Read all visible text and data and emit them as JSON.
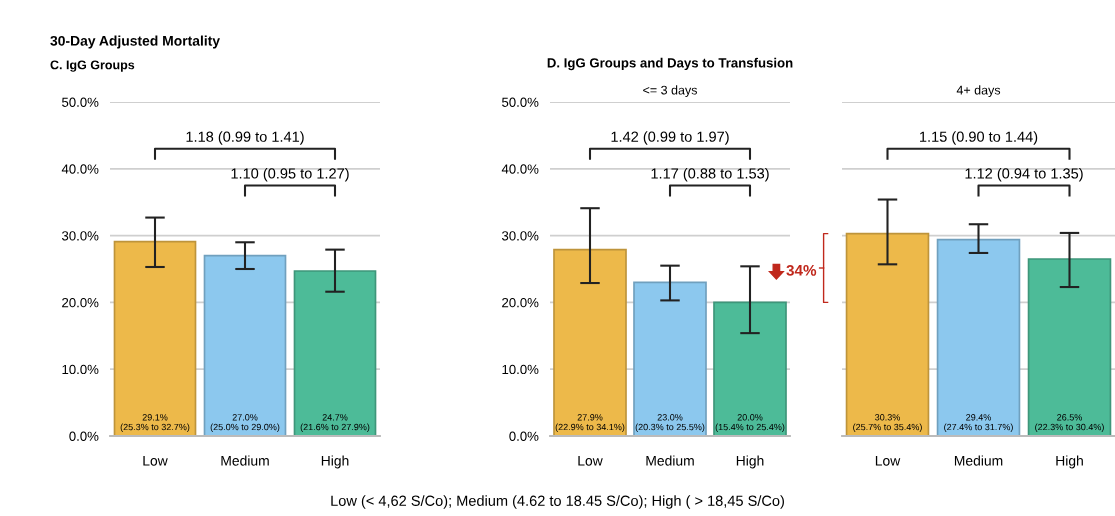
{
  "chart_data": [
    {
      "type": "bar",
      "title": "30-Day Adjusted Mortality",
      "subtitle": "C. IgG Groups",
      "categories": [
        "Low",
        "Medium",
        "High"
      ],
      "values": [
        29.1,
        27.0,
        24.7
      ],
      "colors": [
        "#edb94a",
        "#8cc8ee",
        "#4dbb98"
      ],
      "errors": [
        [
          25.3,
          32.7
        ],
        [
          25.0,
          29.0
        ],
        [
          21.6,
          27.9
        ]
      ],
      "value_labels": [
        "29.1%\n(25.3% to 32.7%)",
        "27.0%\n(25.0% to 29.0%)",
        "24.7%\n(21.6% to 27.9%)"
      ],
      "ylim": [
        0,
        50
      ],
      "yticks": [
        {
          "value": 0,
          "label": "0.0%"
        },
        {
          "value": 10,
          "label": "10.0%"
        },
        {
          "value": 20,
          "label": "20.0%"
        },
        {
          "value": 30,
          "label": "30.0%"
        },
        {
          "value": 40,
          "label": "40.0%"
        },
        {
          "value": 50,
          "label": "50.0%"
        }
      ],
      "grid": "y",
      "annotations": [
        "1.18 (0.99 to 1.41)",
        "1.10 (0.95 to 1.27)",
        "Low (< 4,62 S/Co); Medium (4.62 to 18.45 S/Co); High ( > 18,45 S/Co)"
      ]
    },
    {
      "type": "bar",
      "title": "D. IgG Groups and Days to Transfusion",
      "subtitle": "<= 3 days",
      "categories": [
        "Low",
        "Medium",
        "High"
      ],
      "values": [
        27.9,
        23.0,
        20.0
      ],
      "colors": [
        "#edb94a",
        "#8cc8ee",
        "#4dbb98"
      ],
      "errors": [
        [
          22.9,
          34.1
        ],
        [
          20.3,
          25.5
        ],
        [
          15.4,
          25.4
        ]
      ],
      "value_labels": [
        "27.9%\n(22.9% to 34.1%)",
        "23.0%\n(20.3% to 25.5%)",
        "20.0%\n(15.4% to 25.4%)"
      ],
      "ylim": [
        0,
        50
      ],
      "yticks": [
        {
          "value": 0,
          "label": "0.0%"
        },
        {
          "value": 10,
          "label": "10.0%"
        },
        {
          "value": 20,
          "label": "20.0%"
        },
        {
          "value": 30,
          "label": "30.0%"
        },
        {
          "value": 40,
          "label": "40.0%"
        },
        {
          "value": 50,
          "label": "50.0%"
        }
      ],
      "grid": "y",
      "annotations": [
        "1.42 (0.99 to 1.97)",
        "1.17 (0.88 to 1.53)",
        {
          "text": "34%",
          "x": "High",
          "y": 25.4
        }
      ]
    },
    {
      "type": "bar",
      "subtitle": "4+ days",
      "categories": [
        "Low",
        "Medium",
        "High"
      ],
      "values": [
        30.3,
        29.4,
        26.5
      ],
      "colors": [
        "#edb94a",
        "#8cc8ee",
        "#4dbb98"
      ],
      "errors": [
        [
          25.7,
          35.4
        ],
        [
          27.4,
          31.7
        ],
        [
          22.3,
          30.4
        ]
      ],
      "value_labels": [
        "30.3%\n(25.7% to 35.4%)",
        "29.4%\n(27.4% to 31.7%)",
        "26.5%\n(22.3% to 30.4%)"
      ],
      "ylim": [
        0,
        50
      ],
      "yticks": [
        0,
        10,
        20,
        30,
        40,
        50
      ],
      "tick_labels": "x",
      "grid": "y",
      "annotations": [
        "1.15 (0.90 to 1.44)",
        "1.12 (0.94 to 1.35)"
      ]
    }
  ]
}
